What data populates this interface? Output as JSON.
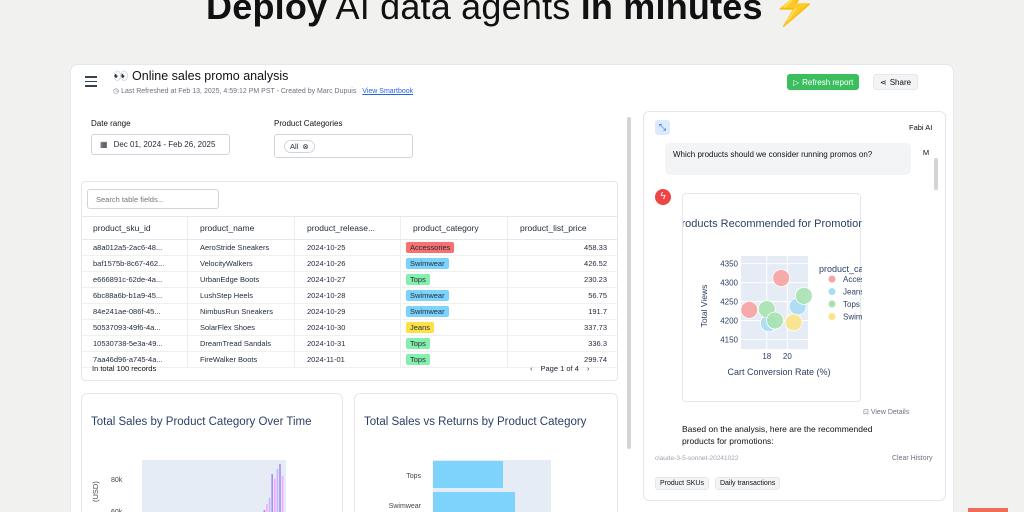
{
  "hero": {
    "bold1": "Deploy",
    "light": "AI data agents",
    "bold2": "in minutes",
    "bolt": "⚡"
  },
  "app": {
    "title": "👀 Online sales promo analysis",
    "subtitle": "Last Refreshed at Feb 13, 2025, 4:59:12 PM PST - Created by Marc Dupuis",
    "view_link": "View Smartbook",
    "refresh_label": "Refresh report",
    "share_label": "Share"
  },
  "filters": {
    "date_label": "Date range",
    "date_value": "Dec 01, 2024 - Feb 26, 2025",
    "category_label": "Product Categories",
    "category_chip": "All"
  },
  "table": {
    "search_placeholder": "Search table fields...",
    "columns": [
      "product_sku_id",
      "product_name",
      "product_release...",
      "product_category",
      "product_list_price"
    ],
    "rows": [
      [
        "a8a012a5-2ac6-48...",
        "AeroStride Sneakers",
        "2024-10-25",
        "Accessories",
        "458.33"
      ],
      [
        "baf1575b-8c67-462...",
        "VelocityWalkers",
        "2024-10-26",
        "Swimwear",
        "426.52"
      ],
      [
        "e666891c-62de-4a...",
        "UrbanEdge Boots",
        "2024-10-27",
        "Tops",
        "230.23"
      ],
      [
        "6bc88a6b-b1a9-45...",
        "LushStep Heels",
        "2024-10-28",
        "Swimwear",
        "56.75"
      ],
      [
        "84e241ae-086f-45...",
        "NimbusRun Sneakers",
        "2024-10-29",
        "Swimwear",
        "191.7"
      ],
      [
        "50537093-49f6-4a...",
        "SolarFlex Shoes",
        "2024-10-30",
        "Jeans",
        "337.73"
      ],
      [
        "10530738-5e3a-49...",
        "DreamTread Sandals",
        "2024-10-31",
        "Tops",
        "336.3"
      ],
      [
        "7aa46d96-a745-4a...",
        "FireWalker Boots",
        "2024-11-01",
        "Tops",
        "299.74"
      ]
    ],
    "total_records": "In total 100 records",
    "page_label": "Page 1 of 4"
  },
  "category_colors": {
    "Accessories": "#f87171",
    "Swimwear": "#7dd3fc",
    "Tops": "#86efac",
    "Jeans": "#fde047"
  },
  "charts": {
    "left_title": "Total Sales by Product Category Over Time",
    "right_title": "Total Sales vs Returns by Product Category"
  },
  "ai": {
    "name": "Fabi AI",
    "question": "Which products should we consider running promos on?",
    "avatar": "M",
    "view_details": "View Details",
    "answer": "Based on the analysis, here are the recommended products for promotions:",
    "model": "claude-3-5-sonnet-20241022",
    "clear_history": "Clear History",
    "chips": [
      "Product SKUs",
      "Daily transactions"
    ]
  },
  "chart_data": [
    {
      "type": "scatter",
      "title": "Products Recommended for Promotions",
      "xlabel": "Cart Conversion Rate (%)",
      "ylabel": "Total Views",
      "legend_title": "product_category",
      "legend": [
        "Accessories",
        "Jeans",
        "Tops",
        "Swimwear"
      ],
      "xticks": [
        "18",
        "20"
      ],
      "yticks": [
        "4350",
        "4300",
        "4250",
        "4200",
        "4150"
      ],
      "xlim": [
        15.5,
        22
      ],
      "ylim": [
        4125,
        4370
      ],
      "series": [
        {
          "name": "Accessories",
          "color": "#f7a3a3",
          "points": [
            [
              19.4,
              4312
            ],
            [
              16.3,
              4228
            ]
          ]
        },
        {
          "name": "Jeans",
          "color": "#a7dcf5",
          "points": [
            [
              18.2,
              4193
            ],
            [
              21.0,
              4237
            ]
          ]
        },
        {
          "name": "Tops",
          "color": "#a7e3b0",
          "points": [
            [
              18.0,
              4230
            ],
            [
              21.6,
              4265
            ],
            [
              18.8,
              4200
            ]
          ]
        },
        {
          "name": "Swimwear",
          "color": "#fbe38a",
          "points": [
            [
              20.6,
              4195
            ]
          ]
        }
      ]
    },
    {
      "type": "bar",
      "title": "Total Sales by Product Category Over Time",
      "ytick_labels": [
        "80k",
        "60k"
      ],
      "ylabel": "(USD)",
      "partial": true
    },
    {
      "type": "bar",
      "orientation": "horizontal",
      "title": "Total Sales vs Returns by Product Category",
      "categories": [
        "Tops",
        "Swimwear"
      ],
      "partial": true
    }
  ]
}
